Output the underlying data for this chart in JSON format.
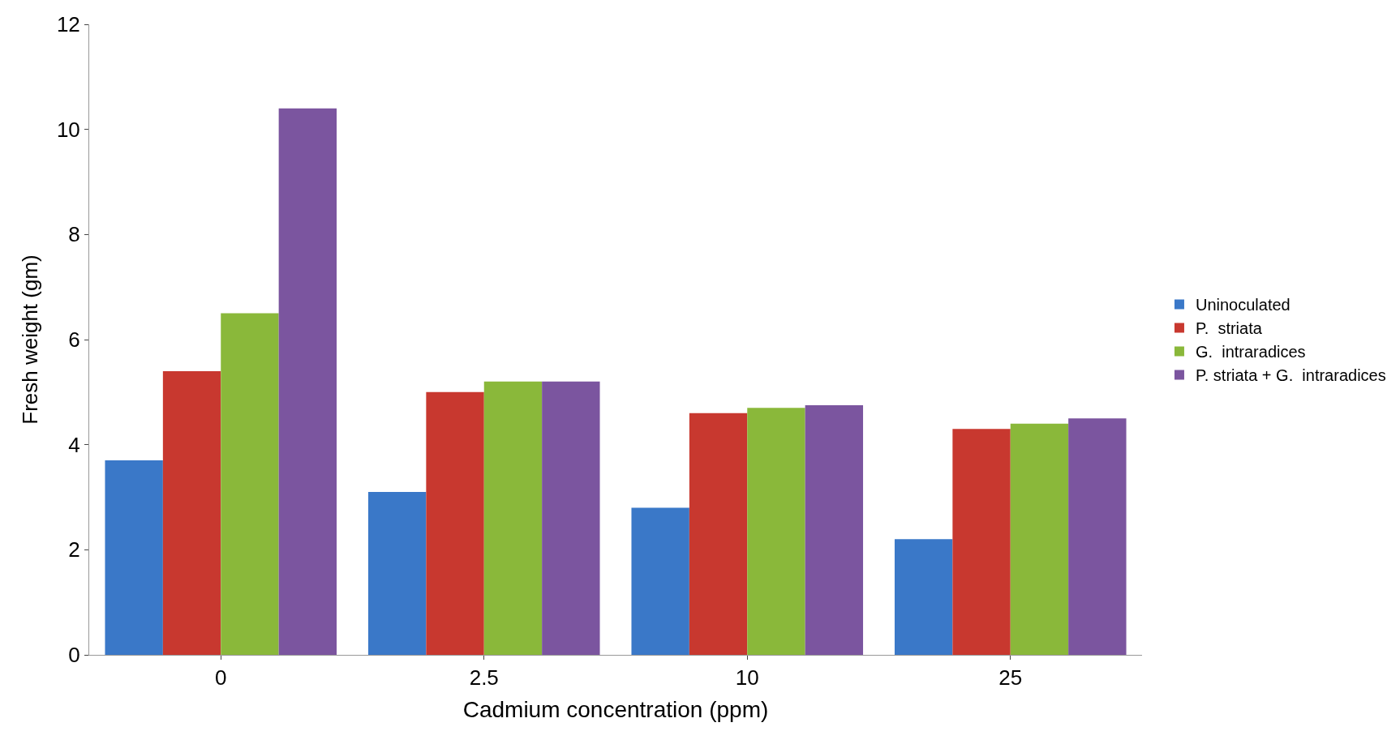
{
  "chart_data": {
    "type": "bar",
    "xlabel": "Cadmium concentration (ppm)",
    "ylabel": "Fresh weight (gm)",
    "categories": [
      "0",
      "2.5",
      "10",
      "25"
    ],
    "series": [
      {
        "name": "Uninoculated",
        "color": "#3a78c8",
        "values": [
          3.7,
          3.1,
          2.8,
          2.2
        ]
      },
      {
        "name": "P.  striata",
        "color": "#c8382f",
        "values": [
          5.4,
          5.0,
          4.6,
          4.3
        ]
      },
      {
        "name": "G.  intraradices",
        "color": "#8ab83a",
        "values": [
          6.5,
          5.2,
          4.7,
          4.4
        ]
      },
      {
        "name": "P. striata + G.  intraradices",
        "color": "#7b559f",
        "values": [
          10.4,
          5.2,
          4.75,
          4.5
        ]
      }
    ],
    "ylim": [
      0,
      12
    ],
    "yticks": [
      0,
      2,
      4,
      6,
      8,
      10,
      12
    ],
    "legend": "right"
  }
}
